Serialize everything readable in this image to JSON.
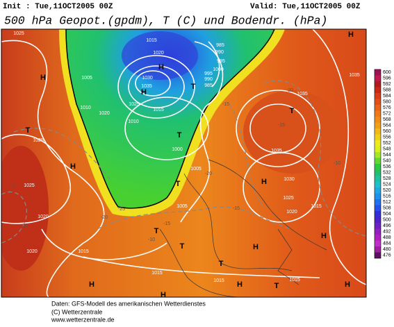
{
  "header": {
    "init": "Init : Tue,11OCT2005 00Z",
    "valid": "Valid: Tue,11OCT2005 00Z",
    "title": "500 hPa Geopot.(gpdm), T (C) und Bodendr. (hPa)"
  },
  "colorbar": {
    "ticks": [
      600,
      596,
      592,
      588,
      584,
      580,
      576,
      572,
      568,
      564,
      560,
      556,
      552,
      548,
      544,
      540,
      536,
      532,
      528,
      524,
      520,
      516,
      512,
      508,
      504,
      500,
      496,
      492,
      488,
      484,
      480,
      476
    ],
    "colors": [
      "#a0105a",
      "#c01850",
      "#b01c1c",
      "#c82818",
      "#d83c18",
      "#e05018",
      "#e86418",
      "#f07818",
      "#f08c18",
      "#f0a018",
      "#f0b818",
      "#f0d018",
      "#f0e820",
      "#d8f020",
      "#a0e828",
      "#60d830",
      "#30c840",
      "#20c070",
      "#20c0a0",
      "#20c0c8",
      "#20a8e0",
      "#2090f0",
      "#2070f0",
      "#2850e8",
      "#3030d8",
      "#5020c8",
      "#7020c0",
      "#9020c0",
      "#b020c0",
      "#c030c8",
      "#a020a0",
      "#601060"
    ]
  },
  "map_labels": [
    "1025",
    "H",
    "T",
    "1025",
    "H",
    "1025",
    "1020",
    "1020",
    "1015",
    "H",
    "1005",
    "1010",
    "1020",
    "1025",
    "1030",
    "1035",
    "H",
    "H",
    "1015",
    "1020",
    "1015",
    "1010",
    "T",
    "1000",
    "T",
    "985",
    "990",
    "995",
    "1000",
    "995",
    "990",
    "985",
    "H",
    "1035",
    "1035",
    "T",
    "1035",
    "H",
    "1030",
    "1025",
    "1020",
    "1015",
    "H",
    "1005",
    "1005",
    "T",
    "T",
    "T",
    "T",
    "H",
    "1015",
    "1015",
    "1015",
    "T",
    "H",
    "H",
    "H"
  ],
  "temperature_labels": [
    "-25",
    "-20",
    "-15",
    "-10",
    "-5",
    "-10",
    "-20",
    "-15",
    "-10",
    "-20",
    "-15",
    "-15"
  ],
  "footer": {
    "line1": "Daten: GFS-Modell des amerikanischen Wetterdienstes",
    "line2": "(C) Wetterzentrale",
    "line3": "www.wetterzentrale.de"
  }
}
